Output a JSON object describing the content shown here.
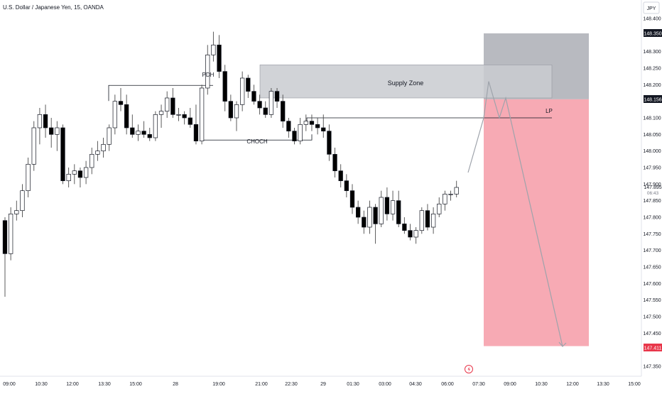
{
  "header": {
    "symbol_title": "U.S. Dollar / Japanese Yen, 15, OANDA"
  },
  "axis": {
    "currency_label": "JPY",
    "y_ticks": [
      "148.400",
      "148.350",
      "148.300",
      "148.250",
      "148.200",
      "148.150",
      "148.100",
      "148.050",
      "148.000",
      "147.950",
      "147.900",
      "147.850",
      "147.800",
      "147.750",
      "147.700",
      "147.650",
      "147.600",
      "147.550",
      "147.500",
      "147.450",
      "147.400",
      "147.350"
    ],
    "x_ticks": [
      "09:00",
      "10:30",
      "12:00",
      "13:30",
      "15:00",
      "28",
      "19:00",
      "21:00",
      "22:30",
      "29",
      "01:30",
      "03:00",
      "04:30",
      "06:00",
      "07:30",
      "09:00",
      "10:30",
      "12:00",
      "13:30",
      "15:00"
    ]
  },
  "price_badges": {
    "top": "148.350",
    "entry": "148.156",
    "current": "147.895",
    "countdown": "06:43",
    "target": "147.411"
  },
  "annotations": {
    "pdh": "PDH",
    "choch": "CHOCH",
    "lp": "LP",
    "supply_zone": "Supply Zone"
  },
  "colors": {
    "up_candle": "#ffffff",
    "down_candle": "#000000",
    "wick": "#4a4a4a",
    "supply_zone": "#c9cbd0",
    "stop_zone": "#b8bac0",
    "target_zone": "#f7aab4",
    "badge_dark": "#131722",
    "badge_red": "#e8364a",
    "projection": "#9ea3ab"
  },
  "chart_data": {
    "type": "candlestick",
    "symbol": "U.S. Dollar / Japanese Yen",
    "timeframe": "15",
    "broker": "OANDA",
    "ylim": [
      147.33,
      148.41
    ],
    "candles": [
      {
        "o": 147.79,
        "h": 147.8,
        "l": 147.56,
        "c": 147.69
      },
      {
        "o": 147.69,
        "h": 147.83,
        "l": 147.67,
        "c": 147.81
      },
      {
        "o": 147.81,
        "h": 147.85,
        "l": 147.79,
        "c": 147.82
      },
      {
        "o": 147.82,
        "h": 147.9,
        "l": 147.8,
        "c": 147.88
      },
      {
        "o": 147.88,
        "h": 147.98,
        "l": 147.86,
        "c": 147.96
      },
      {
        "o": 147.96,
        "h": 148.09,
        "l": 147.94,
        "c": 148.07
      },
      {
        "o": 148.07,
        "h": 148.13,
        "l": 148.02,
        "c": 148.11
      },
      {
        "o": 148.11,
        "h": 148.14,
        "l": 148.04,
        "c": 148.07
      },
      {
        "o": 148.07,
        "h": 148.1,
        "l": 148.01,
        "c": 148.05
      },
      {
        "o": 148.05,
        "h": 148.09,
        "l": 148.0,
        "c": 148.07
      },
      {
        "o": 148.07,
        "h": 148.08,
        "l": 147.9,
        "c": 147.91
      },
      {
        "o": 147.91,
        "h": 147.95,
        "l": 147.89,
        "c": 147.93
      },
      {
        "o": 147.93,
        "h": 147.96,
        "l": 147.9,
        "c": 147.94
      },
      {
        "o": 147.94,
        "h": 147.95,
        "l": 147.89,
        "c": 147.92
      },
      {
        "o": 147.92,
        "h": 147.97,
        "l": 147.9,
        "c": 147.95
      },
      {
        "o": 147.95,
        "h": 148.01,
        "l": 147.93,
        "c": 147.99
      },
      {
        "o": 147.99,
        "h": 148.03,
        "l": 147.97,
        "c": 148.0
      },
      {
        "o": 148.0,
        "h": 148.04,
        "l": 147.98,
        "c": 148.02
      },
      {
        "o": 148.02,
        "h": 148.08,
        "l": 148.0,
        "c": 148.07
      },
      {
        "o": 148.07,
        "h": 148.17,
        "l": 148.05,
        "c": 148.15
      },
      {
        "o": 148.15,
        "h": 148.19,
        "l": 148.12,
        "c": 148.14
      },
      {
        "o": 148.14,
        "h": 148.17,
        "l": 148.05,
        "c": 148.07
      },
      {
        "o": 148.07,
        "h": 148.11,
        "l": 148.04,
        "c": 148.05
      },
      {
        "o": 148.05,
        "h": 148.08,
        "l": 148.03,
        "c": 148.06
      },
      {
        "o": 148.06,
        "h": 148.09,
        "l": 148.04,
        "c": 148.05
      },
      {
        "o": 148.05,
        "h": 148.07,
        "l": 148.03,
        "c": 148.04
      },
      {
        "o": 148.04,
        "h": 148.12,
        "l": 148.03,
        "c": 148.11
      },
      {
        "o": 148.11,
        "h": 148.14,
        "l": 148.07,
        "c": 148.12
      },
      {
        "o": 148.12,
        "h": 148.18,
        "l": 148.1,
        "c": 148.16
      },
      {
        "o": 148.16,
        "h": 148.19,
        "l": 148.1,
        "c": 148.11
      },
      {
        "o": 148.11,
        "h": 148.13,
        "l": 148.09,
        "c": 148.11
      },
      {
        "o": 148.11,
        "h": 148.12,
        "l": 148.08,
        "c": 148.1
      },
      {
        "o": 148.1,
        "h": 148.13,
        "l": 148.07,
        "c": 148.08
      },
      {
        "o": 148.08,
        "h": 148.14,
        "l": 148.02,
        "c": 148.03
      },
      {
        "o": 148.03,
        "h": 148.2,
        "l": 148.02,
        "c": 148.19
      },
      {
        "o": 148.19,
        "h": 148.32,
        "l": 148.17,
        "c": 148.29
      },
      {
        "o": 148.29,
        "h": 148.36,
        "l": 148.27,
        "c": 148.32
      },
      {
        "o": 148.32,
        "h": 148.35,
        "l": 148.22,
        "c": 148.24
      },
      {
        "o": 148.24,
        "h": 148.26,
        "l": 148.12,
        "c": 148.15
      },
      {
        "o": 148.15,
        "h": 148.17,
        "l": 148.09,
        "c": 148.1
      },
      {
        "o": 148.1,
        "h": 148.15,
        "l": 148.06,
        "c": 148.14
      },
      {
        "o": 148.14,
        "h": 148.24,
        "l": 148.12,
        "c": 148.22
      },
      {
        "o": 148.22,
        "h": 148.23,
        "l": 148.16,
        "c": 148.18
      },
      {
        "o": 148.18,
        "h": 148.2,
        "l": 148.14,
        "c": 148.15
      },
      {
        "o": 148.15,
        "h": 148.17,
        "l": 148.11,
        "c": 148.13
      },
      {
        "o": 148.13,
        "h": 148.15,
        "l": 148.1,
        "c": 148.11
      },
      {
        "o": 148.11,
        "h": 148.19,
        "l": 148.1,
        "c": 148.18
      },
      {
        "o": 148.18,
        "h": 148.19,
        "l": 148.13,
        "c": 148.15
      },
      {
        "o": 148.15,
        "h": 148.17,
        "l": 148.07,
        "c": 148.09
      },
      {
        "o": 148.09,
        "h": 148.1,
        "l": 148.04,
        "c": 148.06
      },
      {
        "o": 148.06,
        "h": 148.07,
        "l": 148.02,
        "c": 148.03
      },
      {
        "o": 148.03,
        "h": 148.1,
        "l": 148.02,
        "c": 148.08
      },
      {
        "o": 148.08,
        "h": 148.11,
        "l": 148.06,
        "c": 148.09
      },
      {
        "o": 148.09,
        "h": 148.11,
        "l": 148.06,
        "c": 148.08
      },
      {
        "o": 148.08,
        "h": 148.1,
        "l": 148.05,
        "c": 148.07
      },
      {
        "o": 148.07,
        "h": 148.11,
        "l": 148.04,
        "c": 148.06
      },
      {
        "o": 148.06,
        "h": 148.08,
        "l": 147.97,
        "c": 147.99
      },
      {
        "o": 147.99,
        "h": 148.01,
        "l": 147.92,
        "c": 147.94
      },
      {
        "o": 147.94,
        "h": 147.96,
        "l": 147.89,
        "c": 147.91
      },
      {
        "o": 147.91,
        "h": 147.93,
        "l": 147.86,
        "c": 147.88
      },
      {
        "o": 147.88,
        "h": 147.9,
        "l": 147.81,
        "c": 147.83
      },
      {
        "o": 147.83,
        "h": 147.85,
        "l": 147.78,
        "c": 147.8
      },
      {
        "o": 147.8,
        "h": 147.82,
        "l": 147.75,
        "c": 147.77
      },
      {
        "o": 147.77,
        "h": 147.85,
        "l": 147.75,
        "c": 147.83
      },
      {
        "o": 147.83,
        "h": 147.84,
        "l": 147.72,
        "c": 147.78
      },
      {
        "o": 147.78,
        "h": 147.88,
        "l": 147.77,
        "c": 147.86
      },
      {
        "o": 147.86,
        "h": 147.89,
        "l": 147.79,
        "c": 147.81
      },
      {
        "o": 147.81,
        "h": 147.88,
        "l": 147.79,
        "c": 147.85
      },
      {
        "o": 147.85,
        "h": 147.88,
        "l": 147.77,
        "c": 147.78
      },
      {
        "o": 147.78,
        "h": 147.8,
        "l": 147.75,
        "c": 147.76
      },
      {
        "o": 147.76,
        "h": 147.78,
        "l": 147.73,
        "c": 147.74
      },
      {
        "o": 147.74,
        "h": 147.77,
        "l": 147.72,
        "c": 147.76
      },
      {
        "o": 147.76,
        "h": 147.83,
        "l": 147.75,
        "c": 147.82
      },
      {
        "o": 147.82,
        "h": 147.84,
        "l": 147.76,
        "c": 147.77
      },
      {
        "o": 147.77,
        "h": 147.83,
        "l": 147.75,
        "c": 147.81
      },
      {
        "o": 147.81,
        "h": 147.86,
        "l": 147.8,
        "c": 147.84
      },
      {
        "o": 147.84,
        "h": 147.88,
        "l": 147.82,
        "c": 147.87
      },
      {
        "o": 147.87,
        "h": 147.88,
        "l": 147.85,
        "c": 147.87
      },
      {
        "o": 147.87,
        "h": 147.91,
        "l": 147.86,
        "c": 147.89
      }
    ],
    "levels": {
      "pdh": 148.198,
      "choch": 148.033,
      "lp": 148.1,
      "supply_zone": [
        148.16,
        148.26
      ],
      "stop_zone": [
        148.156,
        148.355
      ],
      "target_zone": [
        147.411,
        148.156
      ]
    },
    "projection_path": [
      148.1,
      148.21,
      148.1,
      148.16,
      147.41
    ]
  }
}
